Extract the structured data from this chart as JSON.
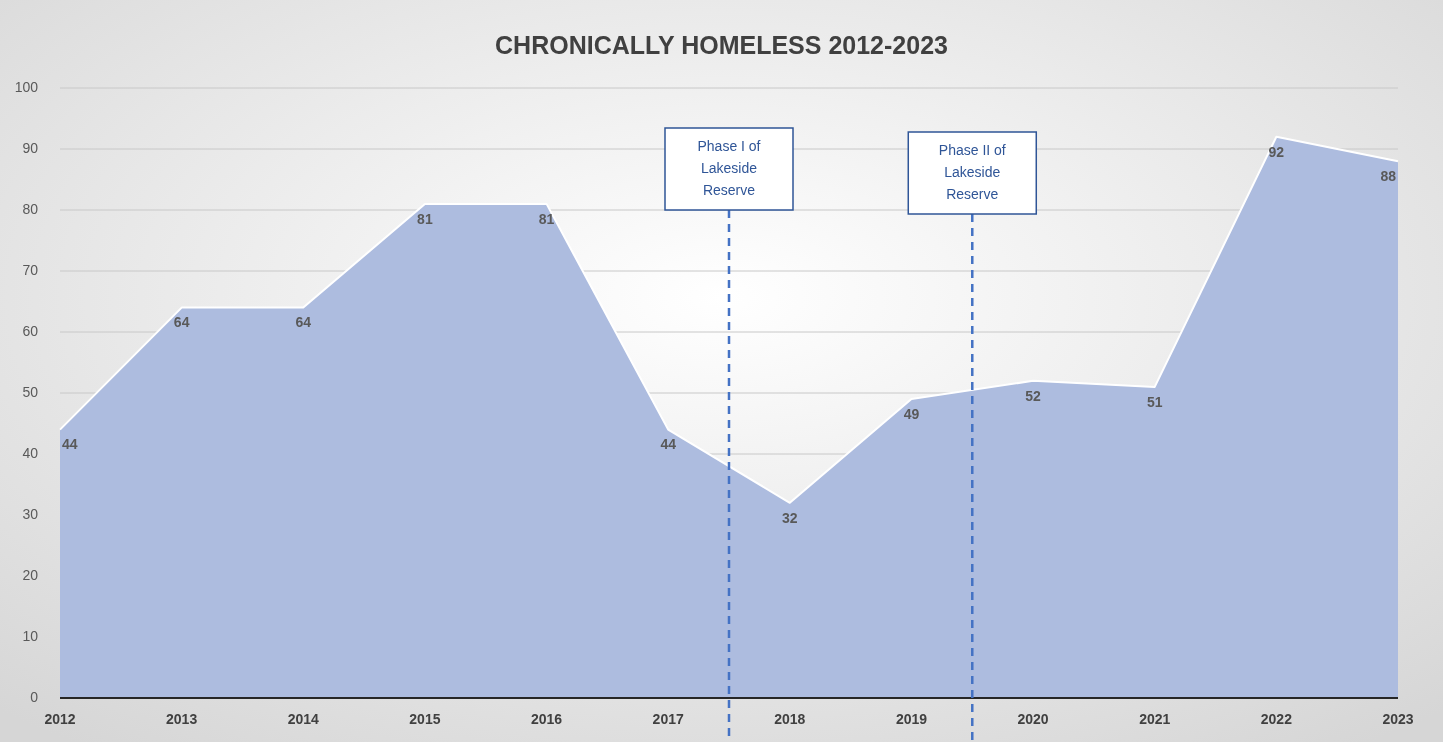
{
  "chart_data": {
    "type": "area",
    "title": "CHRONICALLY HOMELESS 2012-2023",
    "x": [
      2012,
      2013,
      2014,
      2015,
      2016,
      2017,
      2018,
      2019,
      2020,
      2021,
      2022,
      2023
    ],
    "values": [
      44,
      64,
      64,
      81,
      81,
      44,
      32,
      49,
      52,
      51,
      92,
      88
    ],
    "color": "#adbcdf",
    "xlim": [
      2012,
      2023
    ],
    "xticks": [
      2012,
      2013,
      2014,
      2015,
      2016,
      2017,
      2018,
      2019,
      2020,
      2021,
      2022,
      2023
    ],
    "ylim": [
      0,
      100
    ],
    "yticks": [
      0,
      10,
      20,
      30,
      40,
      50,
      60,
      70,
      80,
      90,
      100
    ],
    "grid": "y",
    "data_labels": true,
    "ref_lines": [
      {
        "axis": "x",
        "value": 2017.5,
        "label": "Phase I of Lakeside Reserve",
        "color": "#4472c4",
        "line_style": "dashed"
      },
      {
        "axis": "x",
        "value": 2019.5,
        "label": "Phase II of Lakeside Reserve",
        "color": "#4472c4",
        "line_style": "dashed"
      }
    ]
  }
}
